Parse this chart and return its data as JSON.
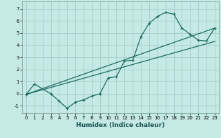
{
  "title": "",
  "xlabel": "Humidex (Indice chaleur)",
  "bg_color": "#c5eae6",
  "grid_color": "#a8d0cc",
  "line_color": "#1a6b60",
  "xlim": [
    -0.5,
    23.5
  ],
  "ylim": [
    -1.6,
    7.6
  ],
  "yticks": [
    -1,
    0,
    1,
    2,
    3,
    4,
    5,
    6,
    7
  ],
  "xticks": [
    0,
    1,
    2,
    3,
    4,
    5,
    6,
    7,
    8,
    9,
    10,
    11,
    12,
    13,
    14,
    15,
    16,
    17,
    18,
    19,
    20,
    21,
    22,
    23
  ],
  "line1_x": [
    0,
    1,
    3,
    4,
    5,
    6,
    7,
    8,
    9,
    10,
    11,
    12,
    13,
    14,
    15,
    16,
    17,
    18,
    19,
    20,
    21,
    22,
    23
  ],
  "line1_y": [
    -0.05,
    0.8,
    0.0,
    -0.6,
    -1.2,
    -0.7,
    -0.5,
    -0.2,
    0.0,
    1.3,
    1.4,
    2.7,
    2.75,
    4.7,
    5.8,
    6.35,
    6.7,
    6.55,
    5.4,
    4.9,
    4.4,
    4.35,
    5.4
  ],
  "line2_x": [
    0,
    23
  ],
  "line2_y": [
    -0.05,
    5.4
  ],
  "line3_x": [
    0,
    23
  ],
  "line3_y": [
    -0.05,
    4.3
  ],
  "xlabel_fontsize": 6.5,
  "tick_fontsize": 5.0
}
